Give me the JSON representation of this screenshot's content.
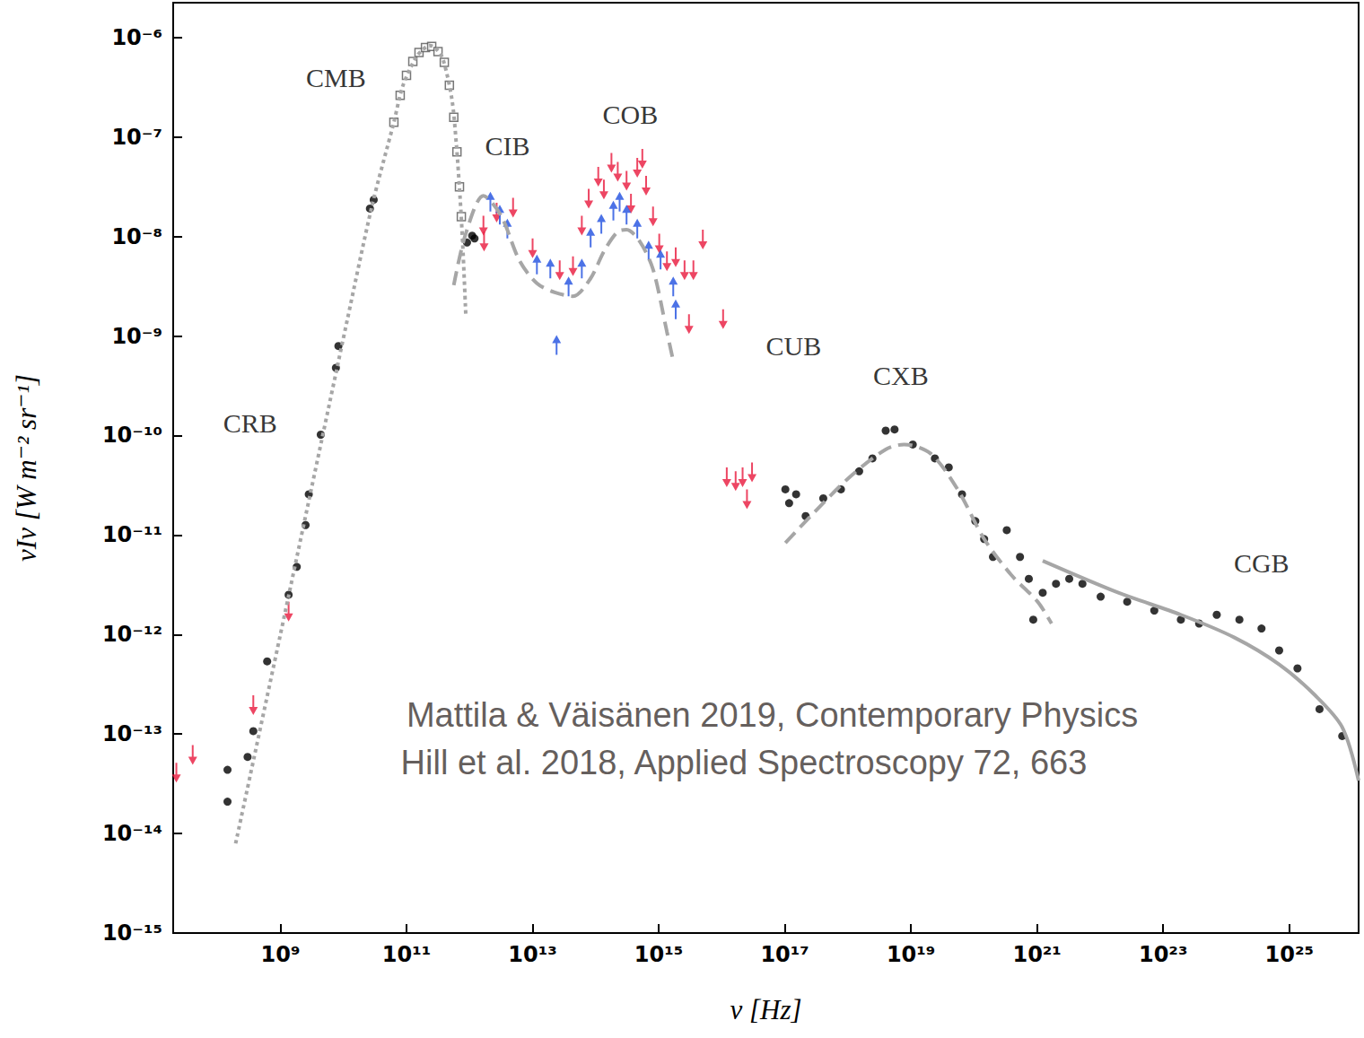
{
  "chart_data": {
    "type": "scatter",
    "xlabel": "ν [Hz]",
    "ylabel": "νIν [W m⁻² sr⁻¹]",
    "log": true,
    "grid": false,
    "xlim": [
      19950000.0,
      1.259e+26
    ],
    "ylim": [
      1e-15,
      2.239e-06
    ],
    "xticks": [
      {
        "value": 1000000000.0,
        "label": "10⁹"
      },
      {
        "value": 100000000000.0,
        "label": "10¹¹"
      },
      {
        "value": 10000000000000.0,
        "label": "10¹³"
      },
      {
        "value": 1000000000000000.0,
        "label": "10¹⁵"
      },
      {
        "value": 1e+17,
        "label": "10¹⁷"
      },
      {
        "value": 1e+19,
        "label": "10¹⁹"
      },
      {
        "value": 1e+21,
        "label": "10²¹"
      },
      {
        "value": 1e+23,
        "label": "10²³"
      },
      {
        "value": 1e+25,
        "label": "10²⁵"
      }
    ],
    "yticks": [
      {
        "value": 1e-15,
        "label": "10⁻¹⁵"
      },
      {
        "value": 1e-14,
        "label": "10⁻¹⁴"
      },
      {
        "value": 1e-13,
        "label": "10⁻¹³"
      },
      {
        "value": 1e-12,
        "label": "10⁻¹²"
      },
      {
        "value": 1e-11,
        "label": "10⁻¹¹"
      },
      {
        "value": 1e-10,
        "label": "10⁻¹⁰"
      },
      {
        "value": 1e-09,
        "label": "10⁻⁹"
      },
      {
        "value": 1e-08,
        "label": "10⁻⁸"
      },
      {
        "value": 1e-07,
        "label": "10⁻⁷"
      },
      {
        "value": 1e-06,
        "label": "10⁻⁶"
      }
    ],
    "series": [
      {
        "type": "scatter",
        "marker": "circle",
        "color": "#000000",
        "x": [
          145000000.0,
          145000000.0,
          302000000.0,
          372000000.0,
          617000000.0,
          1350000000.0,
          1820000000.0,
          2510000000.0,
          2820000000.0,
          4370000000.0,
          7590000000.0,
          8320000000.0,
          26300000000.0,
          30200000000.0,
          912000000000.0,
          1100000000000.0,
          1200000000000.0,
          1.02e+17,
          1.17e+17,
          1.51e+17,
          2.14e+17,
          4.07e+17,
          7.76e+17,
          1.51e+18,
          2.45e+18,
          3.98e+18,
          5.5e+18,
          1.07e+19,
          2.4e+19,
          3.98e+19,
          6.46e+19,
          1.05e+20,
          1.45e+20,
          2e+20,
          3.31e+20,
          5.37e+20,
          7.41e+20,
          8.71e+20,
          1.23e+21,
          2e+21,
          3.24e+21,
          5.25e+21,
          1.02e+22,
          2.69e+22,
          7.24e+22,
          1.91e+23,
          3.72e+23,
          7.08e+23,
          1.62e+24,
          3.63e+24,
          6.92e+24,
          1.35e+25,
          3.02e+25,
          6.92e+25
        ],
        "values": [
          2.09e-14,
          4.37e-14,
          5.89e-14,
          1.07e-13,
          5.37e-13,
          2.51e-12,
          4.79e-12,
          1.26e-11,
          2.57e-11,
          1.02e-10,
          4.79e-10,
          7.94e-10,
          1.91e-08,
          2.34e-08,
          8.71e-09,
          1.02e-08,
          9.55e-09,
          2.88e-11,
          2.09e-11,
          2.57e-11,
          1.55e-11,
          2.34e-11,
          2.88e-11,
          4.37e-11,
          5.89e-11,
          1.12e-10,
          1.15e-10,
          8.13e-11,
          5.89e-11,
          4.79e-11,
          2.57e-11,
          1.38e-11,
          9.12e-12,
          6.03e-12,
          1.12e-11,
          6.03e-12,
          3.63e-12,
          1.41e-12,
          2.63e-12,
          3.24e-12,
          3.63e-12,
          3.24e-12,
          2.4e-12,
          2.14e-12,
          1.74e-12,
          1.41e-12,
          1.29e-12,
          1.58e-12,
          1.41e-12,
          1.15e-12,
          6.92e-13,
          4.57e-13,
          1.78e-13,
          9.55e-14
        ]
      },
      {
        "type": "scatter",
        "marker": "open-square",
        "color": "#555555",
        "x": [
          63100000000.0,
          79400000000.0,
          100000000000.0,
          126000000000.0,
          158000000000.0,
          200000000000.0,
          251000000000.0,
          316000000000.0,
          398000000000.0,
          479000000000.0,
          562000000000.0,
          631000000000.0,
          692000000000.0,
          741000000000.0
        ],
        "values": [
          1.41e-07,
          2.63e-07,
          4.17e-07,
          5.75e-07,
          7.08e-07,
          7.94e-07,
          8.13e-07,
          7.24e-07,
          5.62e-07,
          3.31e-07,
          1.58e-07,
          7.08e-08,
          3.16e-08,
          1.58e-08
        ]
      },
      {
        "type": "scatter",
        "marker": "arrow-down",
        "color": "#e8183c",
        "x": [
          22400000.0,
          40700000.0,
          372000000.0,
          1350000000.0,
          1660000000000.0,
          2690000000000.0,
          4900000000000.0,
          10000000000000.0,
          1700000000000.0,
          26900000000000.0,
          43700000000000.0,
          60300000000000.0,
          77600000000000.0,
          110000000000000.0,
          135000000000000.0,
          178000000000000.0,
          224000000000000.0,
          309000000000000.0,
          363000000000000.0,
          457000000000000.0,
          550000000000000.0,
          631000000000000.0,
          813000000000000.0,
          1020000000000000.0,
          1350000000000000.0,
          1860000000000000.0,
          2570000000000000.0,
          3550000000000000.0,
          5010000000000000.0,
          3020000000000000.0,
          1.05e+16,
          1.2e+16,
          1.66e+16,
          2.14e+16,
          3.02e+16,
          2.51e+16
        ],
        "values": [
          5.13e-14,
          7.76e-14,
          2.45e-13,
          2.14e-12,
          1.62e-08,
          2.19e-08,
          2.45e-08,
          9.55e-09,
          1.12e-08,
          5.75e-09,
          6.31e-09,
          1.62e-08,
          3.02e-08,
          5.01e-08,
          3.72e-08,
          6.92e-08,
          5.62e-08,
          4.57e-08,
          2.69e-08,
          6.17e-08,
          7.59e-08,
          4.07e-08,
          2e-08,
          1.07e-08,
          7.08e-09,
          7.76e-09,
          5.75e-09,
          5.75e-09,
          1.17e-08,
          1.66e-09,
          1.86e-09,
          4.79e-11,
          4.37e-11,
          4.79e-11,
          5.37e-11,
          2.88e-11
        ]
      },
      {
        "type": "scatter",
        "marker": "arrow-up",
        "color": "#1f4fe0",
        "x": [
          2140000000000.0,
          3020000000000.0,
          3980000000000.0,
          11700000000000.0,
          19100000000000.0,
          24000000000000.0,
          37200000000000.0,
          60300000000000.0,
          83200000000000.0,
          123000000000000.0,
          191000000000000.0,
          240000000000000.0,
          309000000000000.0,
          457000000000000.0,
          692000000000000.0,
          1070000000000000.0,
          1700000000000000.0,
          1860000000000000.0
        ],
        "values": [
          1.78e-08,
          1.32e-08,
          9.55e-09,
          4.17e-09,
          3.8e-09,
          6.46e-10,
          2.51e-09,
          3.8e-09,
          7.76e-09,
          1.07e-08,
          1.45e-08,
          1.78e-08,
          1.32e-08,
          9.55e-09,
          5.75e-09,
          4.68e-09,
          2.51e-09,
          1.48e-09
        ]
      },
      {
        "type": "line",
        "line_style": "dotted",
        "color": "#a6a6a6",
        "x": [
          195000000.0,
          1000000000.0,
          11500000000.0,
          28200000000.0,
          63100000000.0,
          87100000000.0,
          141000000000.0,
          182000000000.0,
          234000000000.0,
          302000000000.0,
          380000000000.0,
          525000000000.0,
          617000000000.0,
          708000000000.0,
          776000000000.0,
          871000000000.0
        ],
        "values": [
          7.94e-15,
          1e-12,
          1.45e-09,
          2e-08,
          1.41e-07,
          3.24e-07,
          6.31e-07,
          7.59e-07,
          8.32e-07,
          7.59e-07,
          6.03e-07,
          2.4e-07,
          8.51e-08,
          2.45e-08,
          8.71e-09,
          1.66e-09
        ]
      },
      {
        "type": "line",
        "line_style": "dashed",
        "color": "#a6a6a6",
        "x": [
          562000000000.0,
          871000000000.0,
          1660000000000.0,
          3160000000000.0,
          6170000000000.0,
          11700000000000.0,
          22400000000000.0,
          43700000000000.0,
          83200000000000.0,
          135000000000000.0,
          224000000000000.0,
          309000000000000.0,
          501000000000000.0,
          813000000000000.0,
          1350000000000000.0,
          1700000000000000.0
        ],
        "values": [
          3.24e-09,
          1.07e-08,
          2.57e-08,
          1.62e-08,
          5.75e-09,
          3.39e-09,
          2.75e-09,
          2.51e-09,
          3.8e-09,
          7.08e-09,
          1.12e-08,
          1.17e-08,
          8.91e-09,
          4.68e-09,
          1.1e-09,
          5.62e-10
        ]
      },
      {
        "type": "line",
        "line_style": "dashed",
        "color": "#a6a6a6",
        "x": [
          1.02e+17,
          2.95e+17,
          1.1e+18,
          3.98e+18,
          7.76e+18,
          2.04e+19,
          5.5e+19,
          1.45e+20,
          3.89e+20,
          1.02e+21,
          1.7e+21
        ],
        "values": [
          8.32e-12,
          1.7e-11,
          3.89e-11,
          7.24e-11,
          8.13e-11,
          6.61e-11,
          2.88e-11,
          9.12e-12,
          3.98e-12,
          2.14e-12,
          1.29e-12
        ]
      },
      {
        "type": "line",
        "line_style": "solid",
        "color": "#a6a6a6",
        "x": [
          1.23e+21,
          1.95e+22,
          1.91e+23,
          1.35e+24,
          6.92e+24,
          2.57e+25,
          6.92e+25,
          1.26e+26
        ],
        "values": [
          5.5e-12,
          2.63e-12,
          1.58e-12,
          9.33e-13,
          5.01e-13,
          2.45e-13,
          1.17e-13,
          3.39e-14
        ]
      }
    ],
    "annotations": [
      {
        "text": "CMB",
        "x": 7590000000.0,
        "y": 3.98e-07
      },
      {
        "text": "CIB",
        "x": 3980000000000.0,
        "y": 8.13e-08
      },
      {
        "text": "COB",
        "x": 355000000000000.0,
        "y": 1.7e-07
      },
      {
        "text": "CUB",
        "x": 1.38e+17,
        "y": 7.94e-10
      },
      {
        "text": "CXB",
        "x": 6.92e+18,
        "y": 3.98e-10
      },
      {
        "text": "CRB",
        "x": 331000000.0,
        "y": 1.35e-10
      },
      {
        "text": "CGB",
        "x": 3.63e+24,
        "y": 5.25e-12
      }
    ],
    "credits": [
      {
        "text": "Mattila & Väisänen 2019, Contemporary Physics",
        "x": 6.31e+16,
        "y": 1.55e-13
      },
      {
        "text": "Hill et al. 2018, Applied Spectroscopy 72, 663",
        "x": 2.24e+16,
        "y": 5.13e-14
      }
    ]
  }
}
